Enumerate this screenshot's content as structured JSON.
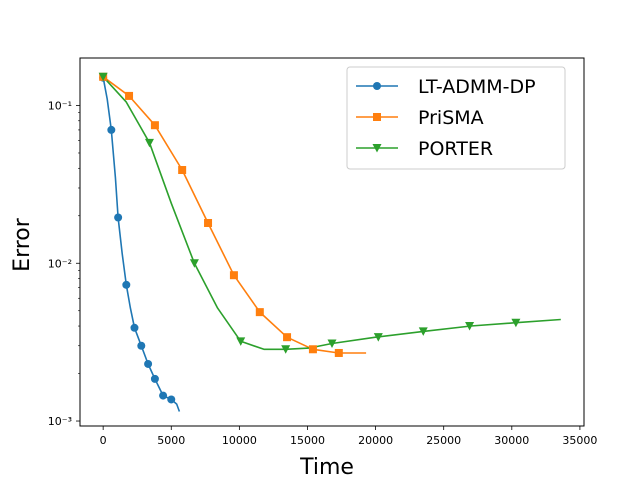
{
  "chart_data": {
    "type": "line",
    "title": "",
    "xlabel": "Time",
    "ylabel": "Error",
    "xscale": "linear",
    "yscale": "log",
    "xlim": [
      -1700,
      35300
    ],
    "ylim": [
      0.00093,
      0.2
    ],
    "xticks": [
      0,
      5000,
      10000,
      15000,
      20000,
      25000,
      30000,
      35000
    ],
    "xtick_labels": [
      "0",
      "5000",
      "10000",
      "15000",
      "20000",
      "25000",
      "30000",
      "35000"
    ],
    "yticks": [
      0.001,
      0.01,
      0.1
    ],
    "ytick_labels": [
      "10⁻³",
      "10⁻²",
      "10⁻¹"
    ],
    "grid": false,
    "legend": "top-right",
    "series": [
      {
        "name": "LT-ADMM-DP",
        "color": "#1f77b4",
        "marker": "circle",
        "line": [
          [
            0,
            0.15
          ],
          [
            300,
            0.11
          ],
          [
            600,
            0.07
          ],
          [
            900,
            0.035
          ],
          [
            1100,
            0.0195
          ],
          [
            1400,
            0.0115
          ],
          [
            1700,
            0.0073
          ],
          [
            2000,
            0.0052
          ],
          [
            2300,
            0.0039
          ],
          [
            2800,
            0.003
          ],
          [
            3300,
            0.0023
          ],
          [
            3800,
            0.00185
          ],
          [
            4400,
            0.00145
          ],
          [
            5000,
            0.00137
          ],
          [
            5400,
            0.00128
          ],
          [
            5600,
            0.00115
          ]
        ],
        "markers": [
          [
            0,
            0.15
          ],
          [
            600,
            0.07
          ],
          [
            1100,
            0.0195
          ],
          [
            1700,
            0.0073
          ],
          [
            2300,
            0.0039
          ],
          [
            2800,
            0.003
          ],
          [
            3300,
            0.0023
          ],
          [
            3800,
            0.00185
          ],
          [
            4400,
            0.00145
          ],
          [
            5000,
            0.00137
          ]
        ]
      },
      {
        "name": "PriSMA",
        "color": "#ff7f0e",
        "marker": "square",
        "line": [
          [
            0,
            0.152
          ],
          [
            1900,
            0.115
          ],
          [
            3800,
            0.075
          ],
          [
            5800,
            0.039
          ],
          [
            7700,
            0.018
          ],
          [
            9600,
            0.0084
          ],
          [
            11500,
            0.0049
          ],
          [
            13500,
            0.0034
          ],
          [
            15400,
            0.00285
          ],
          [
            17300,
            0.0027
          ],
          [
            19300,
            0.0027
          ]
        ],
        "markers": [
          [
            0,
            0.152
          ],
          [
            1900,
            0.115
          ],
          [
            3800,
            0.075
          ],
          [
            5800,
            0.039
          ],
          [
            7700,
            0.018
          ],
          [
            9600,
            0.0084
          ],
          [
            11500,
            0.0049
          ],
          [
            13500,
            0.0034
          ],
          [
            15400,
            0.00285
          ],
          [
            17300,
            0.0027
          ]
        ]
      },
      {
        "name": "PORTER",
        "color": "#2ca02c",
        "marker": "triangle-down",
        "line": [
          [
            0,
            0.152
          ],
          [
            1700,
            0.105
          ],
          [
            3400,
            0.058
          ],
          [
            5000,
            0.024
          ],
          [
            6700,
            0.01
          ],
          [
            8400,
            0.0052
          ],
          [
            10100,
            0.0032
          ],
          [
            11800,
            0.00285
          ],
          [
            13400,
            0.00285
          ],
          [
            15100,
            0.0029
          ],
          [
            16800,
            0.0031
          ],
          [
            20000,
            0.0034
          ],
          [
            23500,
            0.0037
          ],
          [
            27000,
            0.004
          ],
          [
            30300,
            0.0042
          ],
          [
            33600,
            0.0044
          ]
        ],
        "markers": [
          [
            0,
            0.152
          ],
          [
            3400,
            0.058
          ],
          [
            6700,
            0.01
          ],
          [
            10100,
            0.0032
          ],
          [
            13400,
            0.00285
          ],
          [
            16800,
            0.0031
          ],
          [
            20200,
            0.0034
          ],
          [
            23500,
            0.0037
          ],
          [
            26900,
            0.004
          ],
          [
            30300,
            0.0042
          ]
        ]
      }
    ]
  }
}
